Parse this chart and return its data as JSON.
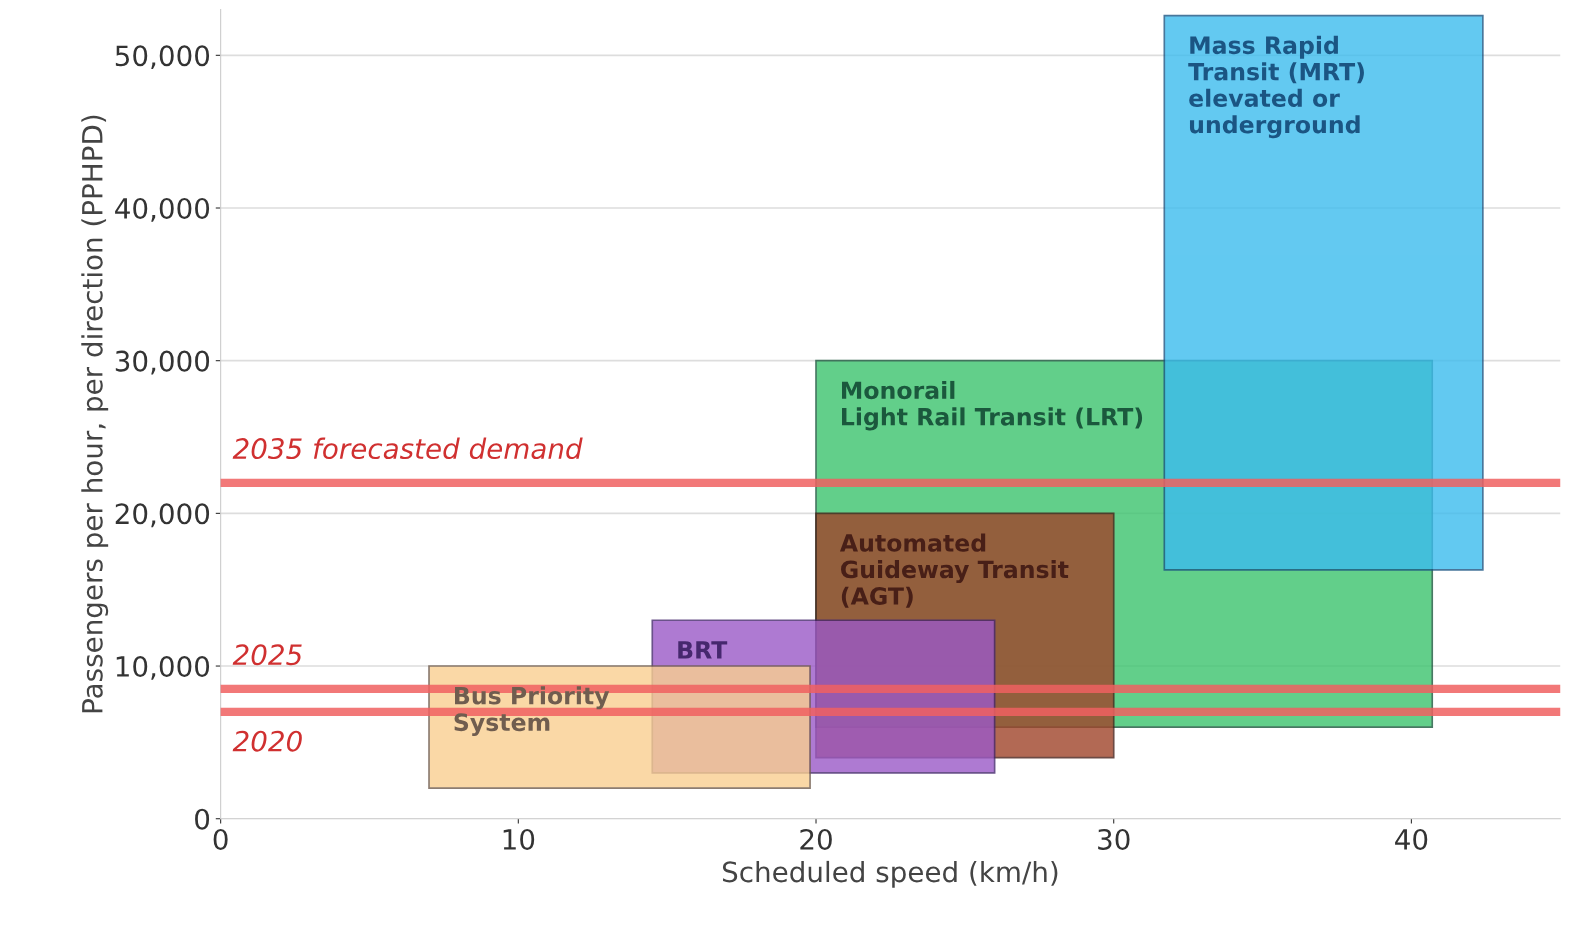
{
  "chart_data": {
    "type": "area",
    "xlabel": "Scheduled speed (km/h)",
    "ylabel": "Passengers per hour, per direction (PPHPD)",
    "xlim": [
      0,
      45
    ],
    "xticks": [
      0,
      10,
      20,
      30,
      40
    ],
    "ylim": [
      0,
      53000
    ],
    "yticks": [
      {
        "value": 0,
        "label": "0"
      },
      {
        "value": 10000,
        "label": "10,000"
      },
      {
        "value": 20000,
        "label": "20,000"
      },
      {
        "value": 30000,
        "label": "30,000"
      },
      {
        "value": 40000,
        "label": "40,000"
      },
      {
        "value": 50000,
        "label": "50,000"
      }
    ],
    "grid": "y",
    "series": [
      {
        "name": "Monorail\nLight Rail Transit (LRT)",
        "color": "#3cc46e",
        "x": [
          20,
          20,
          40.7,
          40.7
        ],
        "values": [
          6000,
          30000,
          30000,
          6000
        ]
      },
      {
        "name": "Mass Rapid\nTransit (MRT)\nelevated or\nunderground",
        "color": "#3cbcee",
        "x": [
          31.7,
          31.7,
          42.4,
          42.4
        ],
        "values": [
          16300,
          52600,
          52600,
          16300
        ]
      },
      {
        "name": "Automated\nGuideway Transit\n(AGT)",
        "color": "#a0442a",
        "x": [
          20,
          20,
          30,
          30
        ],
        "values": [
          4000,
          20000,
          20000,
          4000
        ]
      },
      {
        "name": "BRT",
        "color": "#9b59c8",
        "x": [
          14.5,
          14.5,
          26,
          26
        ],
        "values": [
          3000,
          13000,
          13000,
          3000
        ]
      },
      {
        "name": "Bus Priority\nSystem",
        "color": "#f9cf90",
        "x": [
          7,
          7,
          19.8,
          19.8
        ],
        "values": [
          2000,
          10000,
          10000,
          2000
        ]
      }
    ],
    "ref_lines": [
      {
        "axis": "y",
        "value": 22000,
        "label": "2035 forecasted demand",
        "color": "#f06060"
      },
      {
        "axis": "y",
        "value": 8500,
        "color": "#f06060"
      },
      {
        "axis": "y",
        "value": 7000,
        "color": "#f06060"
      }
    ],
    "annotations": [
      {
        "text": "2025",
        "y": 8500
      },
      {
        "text": "2020",
        "y": 7000
      }
    ]
  }
}
